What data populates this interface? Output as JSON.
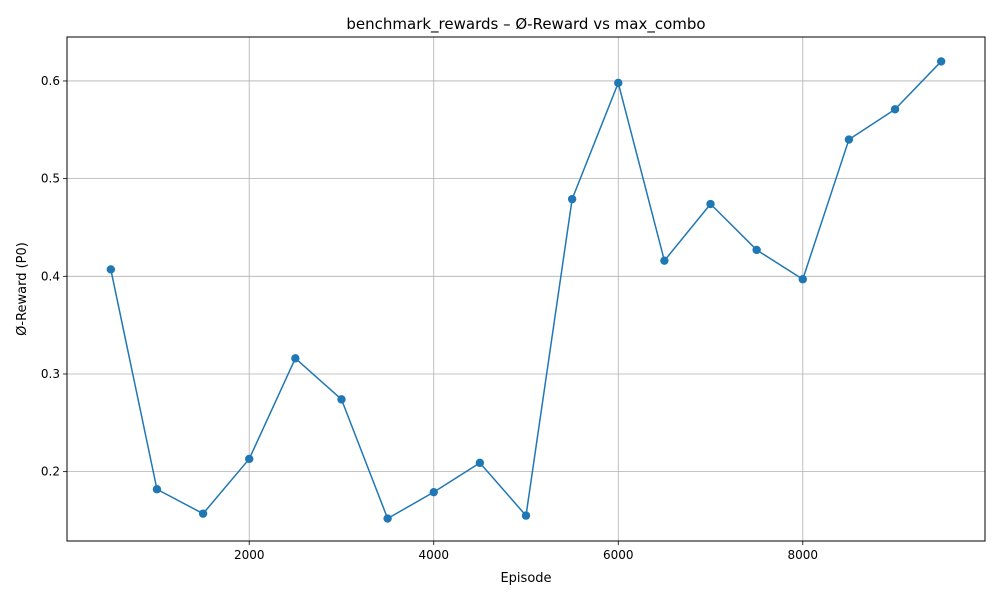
{
  "chart_data": {
    "type": "line",
    "title": "benchmark_rewards – Ø-Reward vs max_combo",
    "xlabel": "Episode",
    "ylabel": "Ø-Reward (P0)",
    "x_ticks": [
      2000,
      4000,
      6000,
      8000
    ],
    "y_ticks": [
      0.2,
      0.3,
      0.4,
      0.5,
      0.6
    ],
    "x_tick_labels": [
      "2000",
      "4000",
      "6000",
      "8000"
    ],
    "y_tick_labels": [
      "0.2",
      "0.3",
      "0.4",
      "0.5",
      "0.6"
    ],
    "xlim": [
      25,
      9975
    ],
    "ylim": [
      0.129,
      0.645
    ],
    "grid": true,
    "marker": "circle",
    "color": "#1f77b4",
    "x": [
      500,
      1000,
      1500,
      2000,
      2500,
      3000,
      3500,
      4000,
      4500,
      5000,
      5500,
      6000,
      6500,
      7000,
      7500,
      8000,
      8500,
      9000,
      9500
    ],
    "y": [
      0.407,
      0.182,
      0.157,
      0.213,
      0.316,
      0.274,
      0.152,
      0.179,
      0.209,
      0.155,
      0.479,
      0.598,
      0.416,
      0.474,
      0.427,
      0.397,
      0.54,
      0.571,
      0.62
    ]
  }
}
